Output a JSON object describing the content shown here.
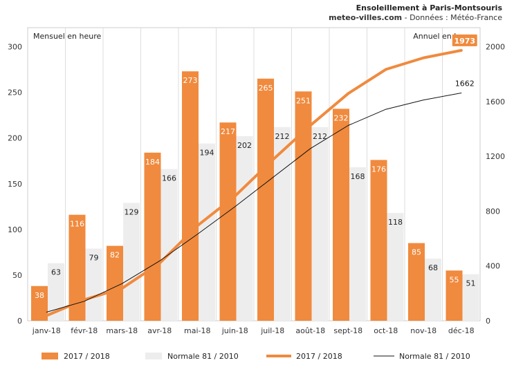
{
  "chart_data": {
    "type": "bar",
    "title": "Ensoleillement à Paris-Montsouris",
    "source_site": "meteo-villes.com",
    "source_credit": " - Données : Météo-France",
    "ylabel_left": "Mensuel en heure",
    "ylabel_right": "Annuel en heure",
    "categories": [
      "janv-18",
      "févr-18",
      "mars-18",
      "avr-18",
      "mai-18",
      "juin-18",
      "juil-18",
      "août-18",
      "sept-18",
      "oct-18",
      "nov-18",
      "déc-18"
    ],
    "ylim_left": [
      0,
      300
    ],
    "yticks_left": [
      0,
      50,
      100,
      150,
      200,
      250,
      300
    ],
    "ylim_right": [
      0,
      2000
    ],
    "yticks_right": [
      0,
      400,
      800,
      1200,
      1600,
      2000
    ],
    "series": [
      {
        "name": "2017 / 2018",
        "kind": "bar",
        "axis": "left",
        "color": "#F08A3E",
        "values": [
          38,
          116,
          82,
          184,
          273,
          217,
          265,
          251,
          232,
          176,
          85,
          55
        ]
      },
      {
        "name": "Normale 81 / 2010",
        "kind": "bar",
        "axis": "left",
        "color": "#EDEDED",
        "values": [
          63,
          79,
          129,
          166,
          194,
          202,
          212,
          212,
          168,
          118,
          68,
          51
        ]
      },
      {
        "name": "2017 / 2018",
        "kind": "line",
        "axis": "right",
        "color": "#F08A3E",
        "values": [
          38,
          154,
          236,
          420,
          693,
          910,
          1175,
          1426,
          1658,
          1834,
          1919,
          1973
        ],
        "end_label": "1973"
      },
      {
        "name": "Normale 81 / 2010",
        "kind": "line",
        "axis": "right",
        "color": "#111111",
        "values": [
          63,
          142,
          271,
          437,
          631,
          833,
          1045,
          1257,
          1425,
          1543,
          1611,
          1662
        ],
        "end_label": "1662"
      }
    ],
    "grid": "vertical",
    "legend_position": "bottom"
  }
}
